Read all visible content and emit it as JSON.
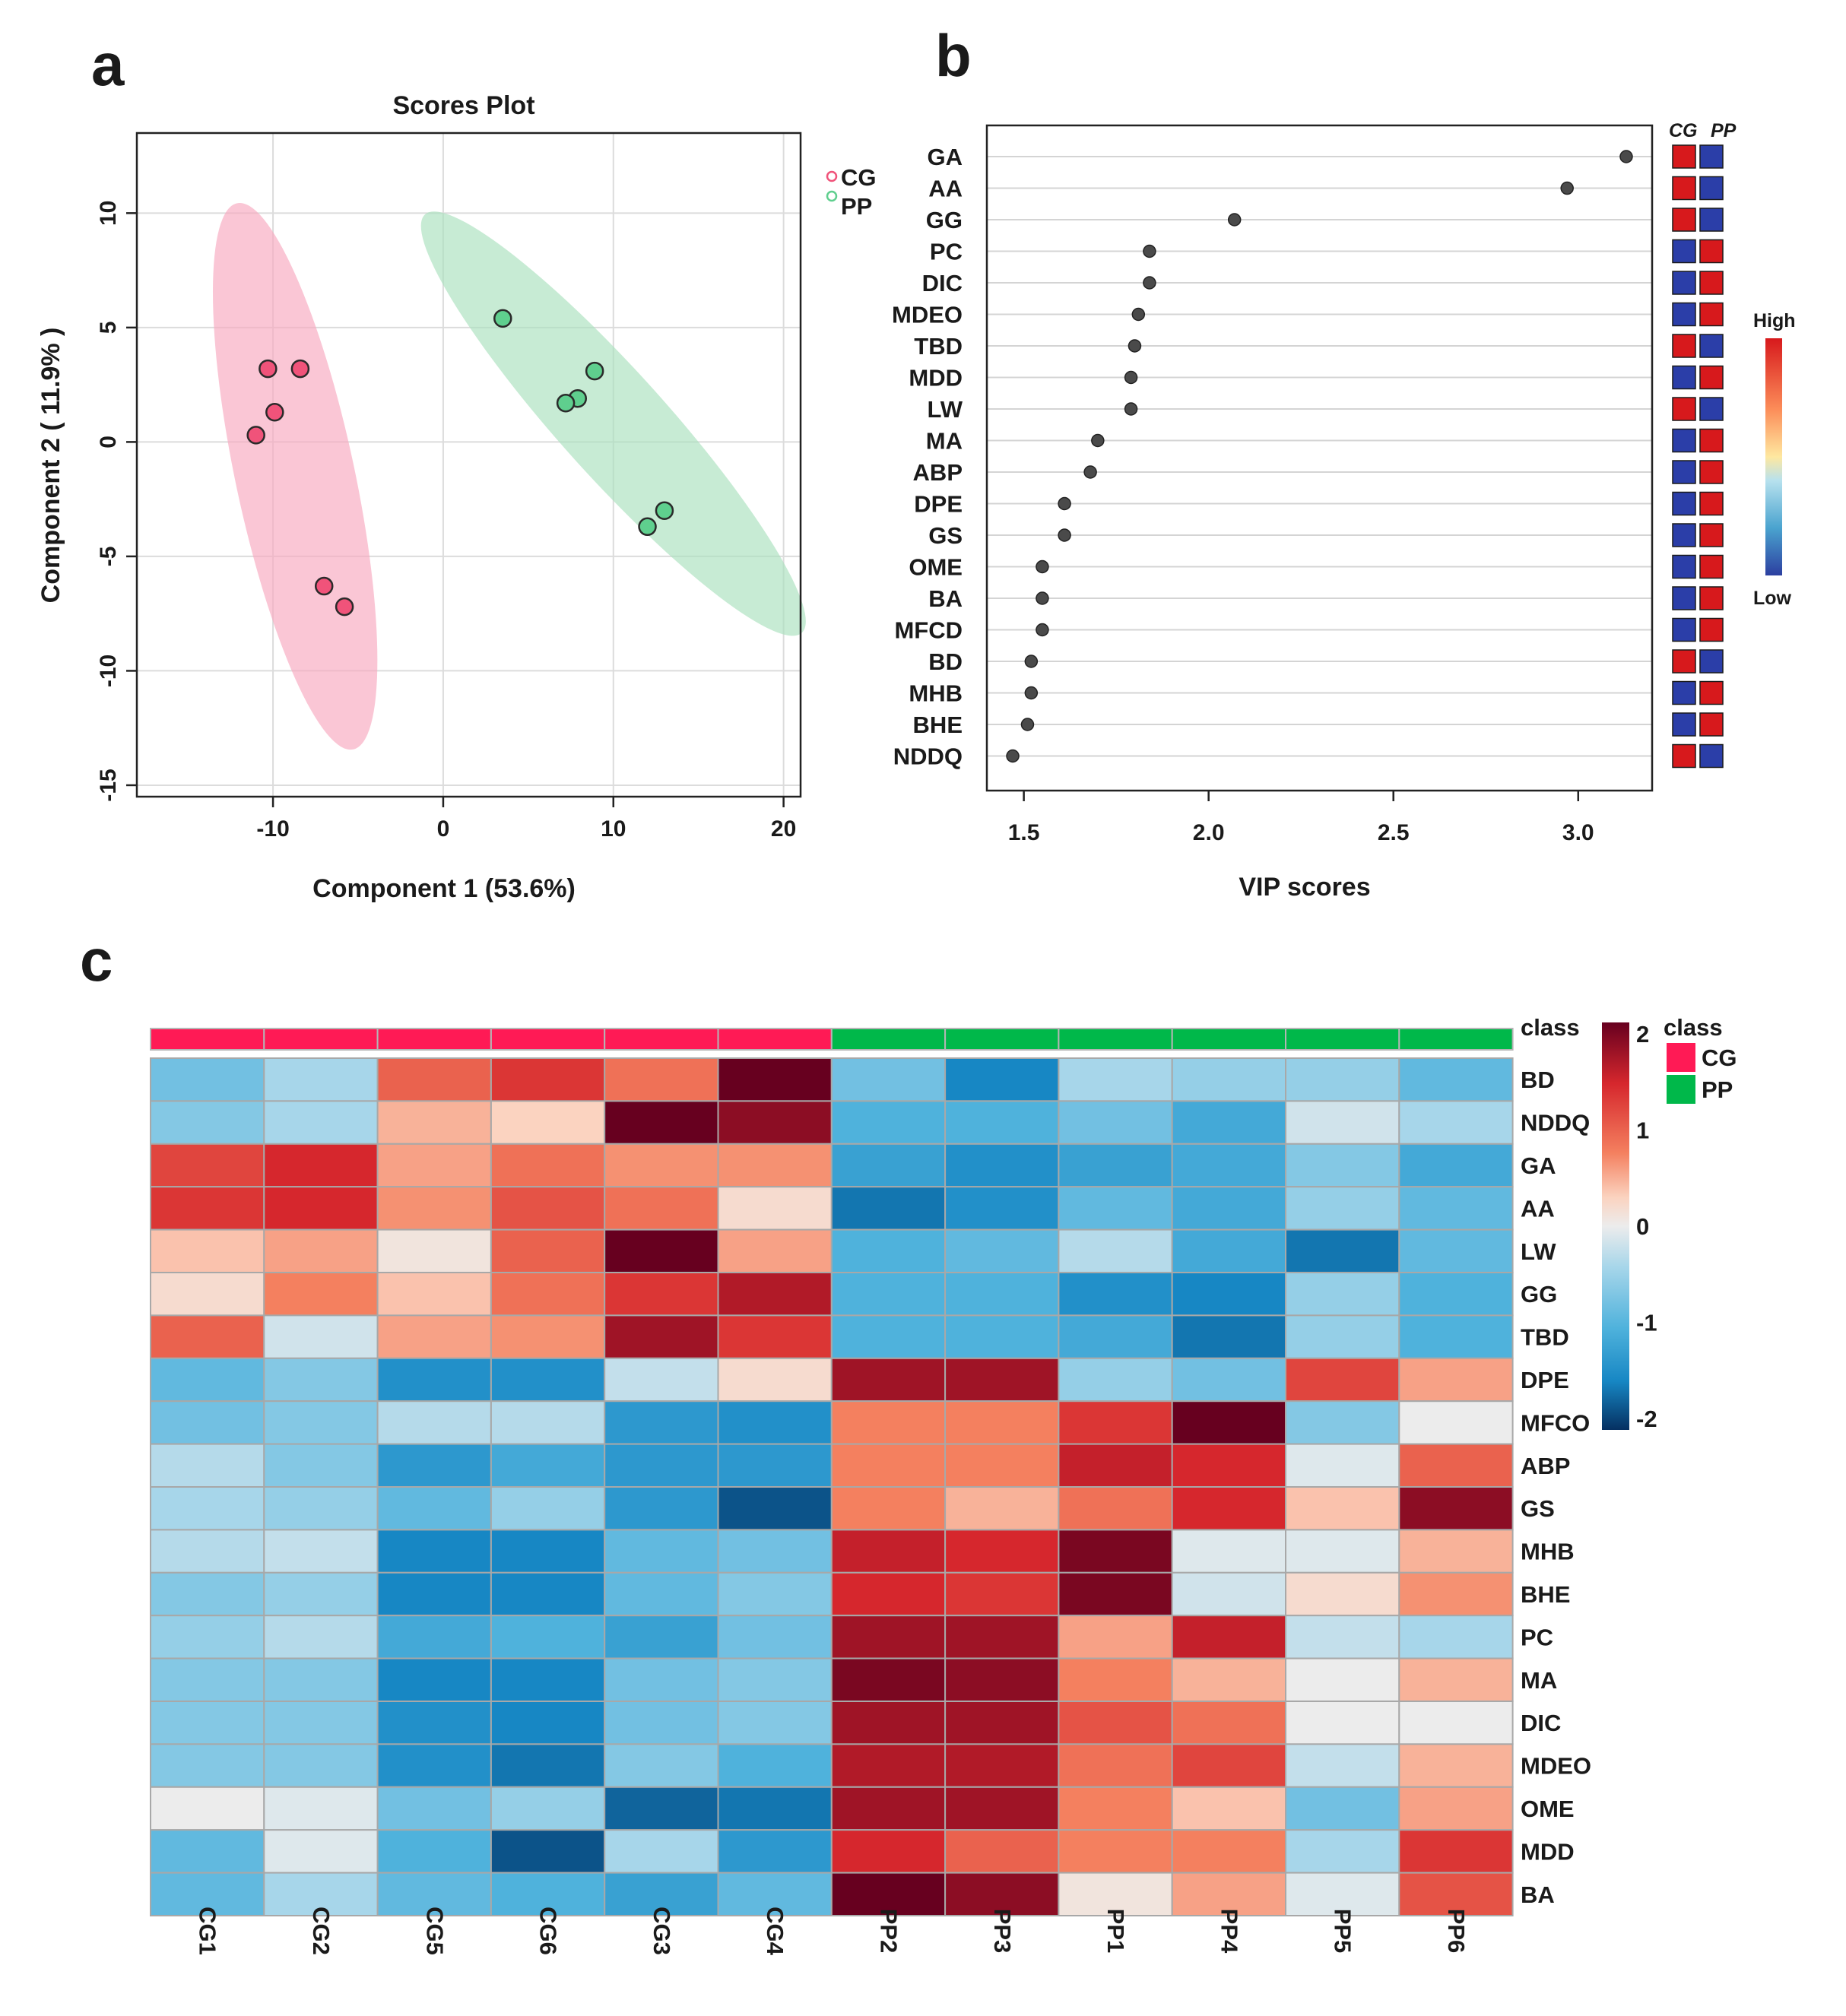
{
  "panel_letters": [
    "a",
    "b",
    "c"
  ],
  "colors": {
    "CG": "#f0537a",
    "PP": "#5fcf8e",
    "ellipse_CG": "#f8a8bf",
    "ellipse_PP": "#a9e0bd",
    "annot_CG": "#ff1a55",
    "annot_PP": "#00b84a",
    "vip_high": "#d7191c",
    "vip_low": "#2b3ea8"
  },
  "chart_data": [
    {
      "type": "scatter",
      "title": "Scores Plot",
      "xlabel": "Component 1 (53.6%)",
      "ylabel": "Component 2 ( 11.9% )",
      "xlim": [
        -18,
        21
      ],
      "ylim": [
        -15.5,
        13.5
      ],
      "xticks": [
        -10,
        0,
        10,
        20
      ],
      "yticks": [
        10,
        5,
        0,
        -5,
        -10,
        -15
      ],
      "grid": true,
      "legend": [
        "CG",
        "PP"
      ],
      "legend_position": "top-right outside",
      "series": [
        {
          "name": "CG",
          "x": [
            -10.3,
            -8.4,
            -9.9,
            -11.0,
            -7.0,
            -5.8
          ],
          "y": [
            3.2,
            3.2,
            1.3,
            0.3,
            -6.3,
            -7.2
          ]
        },
        {
          "name": "PP",
          "x": [
            3.5,
            8.9,
            7.9,
            7.2,
            13.0,
            12.0
          ],
          "y": [
            5.4,
            3.1,
            1.9,
            1.7,
            -3.0,
            -3.7
          ]
        }
      ],
      "ellipses": [
        {
          "group": "CG",
          "center": [
            -8.7,
            -1.5
          ],
          "half_axes": [
            3.5,
            12.2
          ],
          "tilt_deg": 12
        },
        {
          "group": "PP",
          "center": [
            10.0,
            0.8
          ],
          "half_axes": [
            3.1,
            12.3
          ],
          "tilt_deg": 42
        }
      ]
    },
    {
      "type": "scatter",
      "title": "",
      "xlabel": "VIP scores",
      "xlim": [
        1.4,
        3.2
      ],
      "xticks": [
        1.5,
        2.0,
        2.5,
        3.0
      ],
      "tick_labels": [
        "1.5",
        "2.0",
        "2.5",
        "3.0"
      ],
      "categories": [
        "GA",
        "AA",
        "GG",
        "PC",
        "DIC",
        "MDEO",
        "TBD",
        "MDD",
        "LW",
        "MA",
        "ABP",
        "DPE",
        "GS",
        "OME",
        "BA",
        "MFCD",
        "BD",
        "MHB",
        "BHE",
        "NDDQ"
      ],
      "values": [
        3.13,
        2.97,
        2.07,
        1.84,
        1.84,
        1.81,
        1.8,
        1.79,
        1.79,
        1.7,
        1.68,
        1.61,
        1.61,
        1.55,
        1.55,
        1.55,
        1.52,
        1.52,
        1.51,
        1.47
      ],
      "side_columns": [
        "CG",
        "PP"
      ],
      "side_high_group": [
        "CG",
        "CG",
        "CG",
        "PP",
        "PP",
        "PP",
        "CG",
        "PP",
        "CG",
        "PP",
        "PP",
        "PP",
        "PP",
        "PP",
        "PP",
        "PP",
        "CG",
        "PP",
        "PP",
        "CG"
      ],
      "colorbar": {
        "high_label": "High",
        "low_label": "Low"
      }
    },
    {
      "type": "heatmap",
      "columns": [
        "CG1",
        "CG2",
        "CG5",
        "CG6",
        "CG3",
        "CG4",
        "PP2",
        "PP3",
        "PP1",
        "PP4",
        "PP5",
        "PP6"
      ],
      "column_class": [
        "CG",
        "CG",
        "CG",
        "CG",
        "CG",
        "CG",
        "PP",
        "PP",
        "PP",
        "PP",
        "PP",
        "PP"
      ],
      "annotation_label": "class",
      "rows": [
        "BD",
        "NDDQ",
        "GA",
        "AA",
        "LW",
        "GG",
        "TBD",
        "DPE",
        "MFCO",
        "ABP",
        "GS",
        "MHB",
        "BHE",
        "PC",
        "MA",
        "DIC",
        "MDEO",
        "OME",
        "MDD",
        "BA"
      ],
      "values": [
        [
          -0.8,
          -0.5,
          1.0,
          1.3,
          0.9,
          2.0,
          -0.8,
          -1.5,
          -0.5,
          -0.6,
          -0.6,
          -0.9
        ],
        [
          -0.7,
          -0.5,
          0.5,
          0.3,
          2.5,
          1.8,
          -1.0,
          -1.0,
          -0.8,
          -1.1,
          -0.2,
          -0.5
        ],
        [
          1.2,
          1.4,
          0.6,
          0.9,
          0.7,
          0.7,
          -1.2,
          -1.4,
          -1.2,
          -1.1,
          -0.7,
          -1.1
        ],
        [
          1.3,
          1.4,
          0.7,
          1.1,
          0.9,
          0.2,
          -1.6,
          -1.4,
          -0.9,
          -1.1,
          -0.6,
          -0.9
        ],
        [
          0.4,
          0.6,
          0.1,
          1.0,
          2.5,
          0.6,
          -1.0,
          -0.9,
          -0.4,
          -1.1,
          -1.6,
          -0.9
        ],
        [
          0.2,
          0.8,
          0.4,
          0.9,
          1.3,
          1.6,
          -1.0,
          -1.0,
          -1.4,
          -1.5,
          -0.6,
          -1.0
        ],
        [
          1.0,
          -0.2,
          0.6,
          0.7,
          1.7,
          1.3,
          -1.0,
          -1.0,
          -1.1,
          -1.6,
          -0.6,
          -1.0
        ],
        [
          -0.9,
          -0.7,
          -1.4,
          -1.4,
          -0.3,
          0.2,
          1.7,
          1.7,
          -0.6,
          -0.8,
          1.2,
          0.6
        ],
        [
          -0.8,
          -0.7,
          -0.4,
          -0.4,
          -1.3,
          -1.4,
          0.8,
          0.8,
          1.3,
          2.2,
          -0.7,
          0.0
        ],
        [
          -0.4,
          -0.7,
          -1.3,
          -1.1,
          -1.3,
          -1.3,
          0.8,
          0.8,
          1.5,
          1.4,
          -0.1,
          1.0
        ],
        [
          -0.5,
          -0.6,
          -0.9,
          -0.6,
          -1.3,
          -1.8,
          0.8,
          0.5,
          0.9,
          1.4,
          0.4,
          1.8
        ],
        [
          -0.4,
          -0.3,
          -1.5,
          -1.5,
          -0.9,
          -0.8,
          1.5,
          1.4,
          1.9,
          -0.1,
          -0.1,
          0.5
        ],
        [
          -0.7,
          -0.6,
          -1.5,
          -1.5,
          -0.9,
          -0.7,
          1.4,
          1.3,
          1.9,
          -0.2,
          0.2,
          0.7
        ],
        [
          -0.6,
          -0.4,
          -1.1,
          -1.0,
          -1.2,
          -0.8,
          1.7,
          1.7,
          0.6,
          1.5,
          -0.3,
          -0.5
        ],
        [
          -0.7,
          -0.7,
          -1.5,
          -1.5,
          -0.8,
          -0.7,
          1.9,
          1.8,
          0.8,
          0.5,
          0.0,
          0.5
        ],
        [
          -0.7,
          -0.7,
          -1.4,
          -1.5,
          -0.8,
          -0.7,
          1.7,
          1.7,
          1.1,
          0.9,
          0.0,
          0.0
        ],
        [
          -0.7,
          -0.7,
          -1.4,
          -1.6,
          -0.7,
          -1.0,
          1.6,
          1.6,
          0.9,
          1.2,
          -0.3,
          0.5
        ],
        [
          0.0,
          -0.1,
          -0.8,
          -0.6,
          -1.7,
          -1.6,
          1.7,
          1.7,
          0.8,
          0.4,
          -0.8,
          0.6
        ],
        [
          -0.9,
          -0.1,
          -1.0,
          -1.8,
          -0.5,
          -1.3,
          1.4,
          1.0,
          0.8,
          0.8,
          -0.5,
          1.3
        ],
        [
          -0.9,
          -0.5,
          -0.9,
          -1.0,
          -1.2,
          -0.9,
          2.0,
          1.8,
          0.1,
          0.6,
          -0.1,
          1.1
        ]
      ],
      "color_scale": {
        "min": -2,
        "max": 2,
        "ticks": [
          "2",
          "1",
          "0",
          "-1",
          "-2"
        ]
      },
      "legend_title": "class",
      "legend": [
        "CG",
        "PP"
      ]
    }
  ]
}
